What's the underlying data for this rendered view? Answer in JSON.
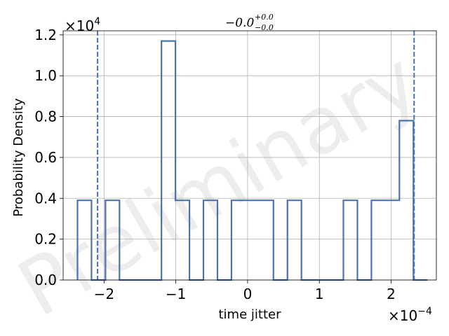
{
  "chart_data": {
    "type": "histogram",
    "xlabel": "time jitter",
    "ylabel": "Probability Density",
    "x_multiplier": "×10",
    "x_multiplier_exp": "−4",
    "y_multiplier": "×10",
    "y_multiplier_exp": "4",
    "title": {
      "main": "−0.0",
      "sup": "+0.0",
      "sub": "−0.0"
    },
    "watermark": "Preliminary",
    "xlim": [
      -2.57,
      2.63
    ],
    "ylim": [
      0,
      1.22
    ],
    "xticks": [
      -2,
      -1,
      0,
      1,
      2
    ],
    "xtick_labels": [
      "−2",
      "−1",
      "0",
      "1",
      "2"
    ],
    "yticks": [
      0.0,
      0.2,
      0.4,
      0.6,
      0.8,
      1.0,
      1.2
    ],
    "ytick_labels": [
      "0.0",
      "0.2",
      "0.4",
      "0.6",
      "0.8",
      "1.0",
      "1.2"
    ],
    "grid": true,
    "series": [
      {
        "style": "step",
        "color": "#4c72b0",
        "bin_edges": [
          -2.37,
          -2.175,
          -1.98,
          -1.785,
          -1.59,
          -1.395,
          -1.2,
          -1.005,
          -0.81,
          -0.615,
          -0.42,
          -0.225,
          -0.03,
          0.165,
          0.36,
          0.555,
          0.75,
          0.945,
          1.14,
          1.335,
          1.53,
          1.725,
          1.92,
          2.115,
          2.31,
          2.505
        ],
        "values": [
          0.39,
          0,
          0.39,
          0,
          0,
          0,
          1.17,
          0.39,
          0,
          0.39,
          0,
          0.39,
          0.39,
          0.39,
          0,
          0.39,
          0,
          0,
          0,
          0.39,
          0,
          0.39,
          0.39,
          0.78,
          0
        ]
      }
    ],
    "vlines": [
      {
        "x": -2.09,
        "style": "dashed",
        "color": "#4c72b0"
      },
      {
        "x": 2.32,
        "style": "dashed",
        "color": "#4c72b0"
      }
    ]
  }
}
